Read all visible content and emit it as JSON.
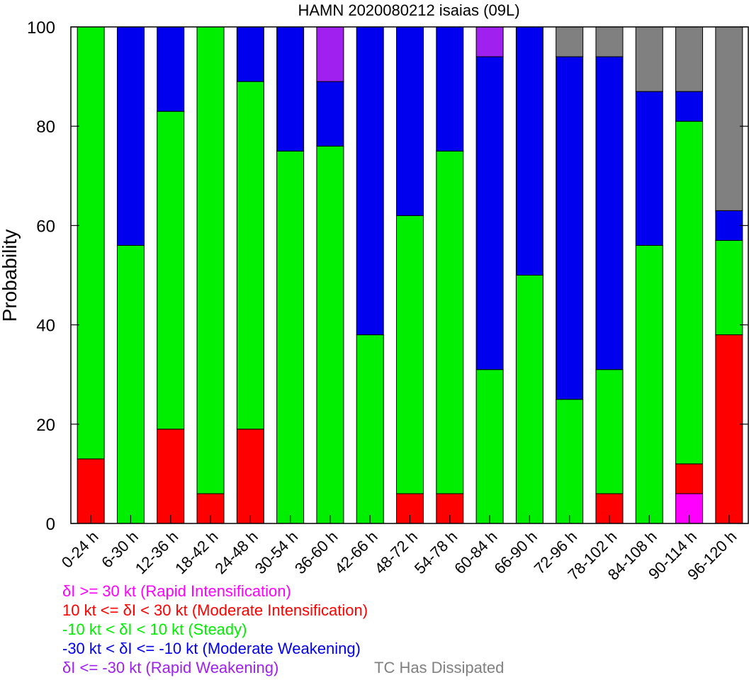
{
  "chart_data": {
    "type": "bar",
    "stacked": true,
    "title": "HAMN 2020080212 isaias (09L)",
    "xlabel": "",
    "ylabel": "Probability",
    "ylim": [
      0,
      100
    ],
    "yticks": [
      0,
      20,
      40,
      60,
      80,
      100
    ],
    "grid": false,
    "categories": [
      "0-24 h",
      "6-30 h",
      "12-36 h",
      "18-42 h",
      "24-48 h",
      "30-54 h",
      "36-60 h",
      "42-66 h",
      "48-72 h",
      "54-78 h",
      "60-84 h",
      "66-90 h",
      "72-96 h",
      "78-102 h",
      "84-108 h",
      "90-114 h",
      "96-120 h"
    ],
    "series": [
      {
        "name": "δI >= 30 kt (Rapid Intensification)",
        "color": "#ff00ff",
        "values": [
          0,
          0,
          0,
          0,
          0,
          0,
          0,
          0,
          0,
          0,
          0,
          0,
          0,
          0,
          0,
          6,
          0
        ]
      },
      {
        "name": "10 kt <= δI < 30 kt (Moderate Intensification)",
        "color": "#ff0000",
        "values": [
          13,
          0,
          19,
          6,
          19,
          0,
          0,
          0,
          6,
          6,
          0,
          0,
          0,
          6,
          0,
          6,
          38
        ]
      },
      {
        "name": "-10 kt < δI < 10 kt (Steady)",
        "color": "#00ee00",
        "values": [
          87,
          56,
          64,
          94,
          70,
          75,
          76,
          38,
          56,
          69,
          31,
          50,
          25,
          25,
          56,
          69,
          19
        ]
      },
      {
        "name": "-30 kt < δI <= -10 kt (Moderate Weakening)",
        "color": "#0000ee",
        "values": [
          0,
          44,
          17,
          0,
          11,
          25,
          13,
          62,
          38,
          25,
          63,
          50,
          69,
          63,
          31,
          6,
          6
        ]
      },
      {
        "name": "δI <= -30 kt (Rapid Weakening)",
        "color": "#a020f0",
        "values": [
          0,
          0,
          0,
          0,
          0,
          0,
          11,
          0,
          0,
          0,
          6,
          0,
          0,
          0,
          0,
          0,
          0
        ]
      },
      {
        "name": "TC Has Dissipated",
        "color": "#808080",
        "values": [
          0,
          0,
          0,
          0,
          0,
          0,
          0,
          0,
          0,
          0,
          0,
          0,
          6,
          6,
          13,
          13,
          37
        ]
      }
    ]
  }
}
